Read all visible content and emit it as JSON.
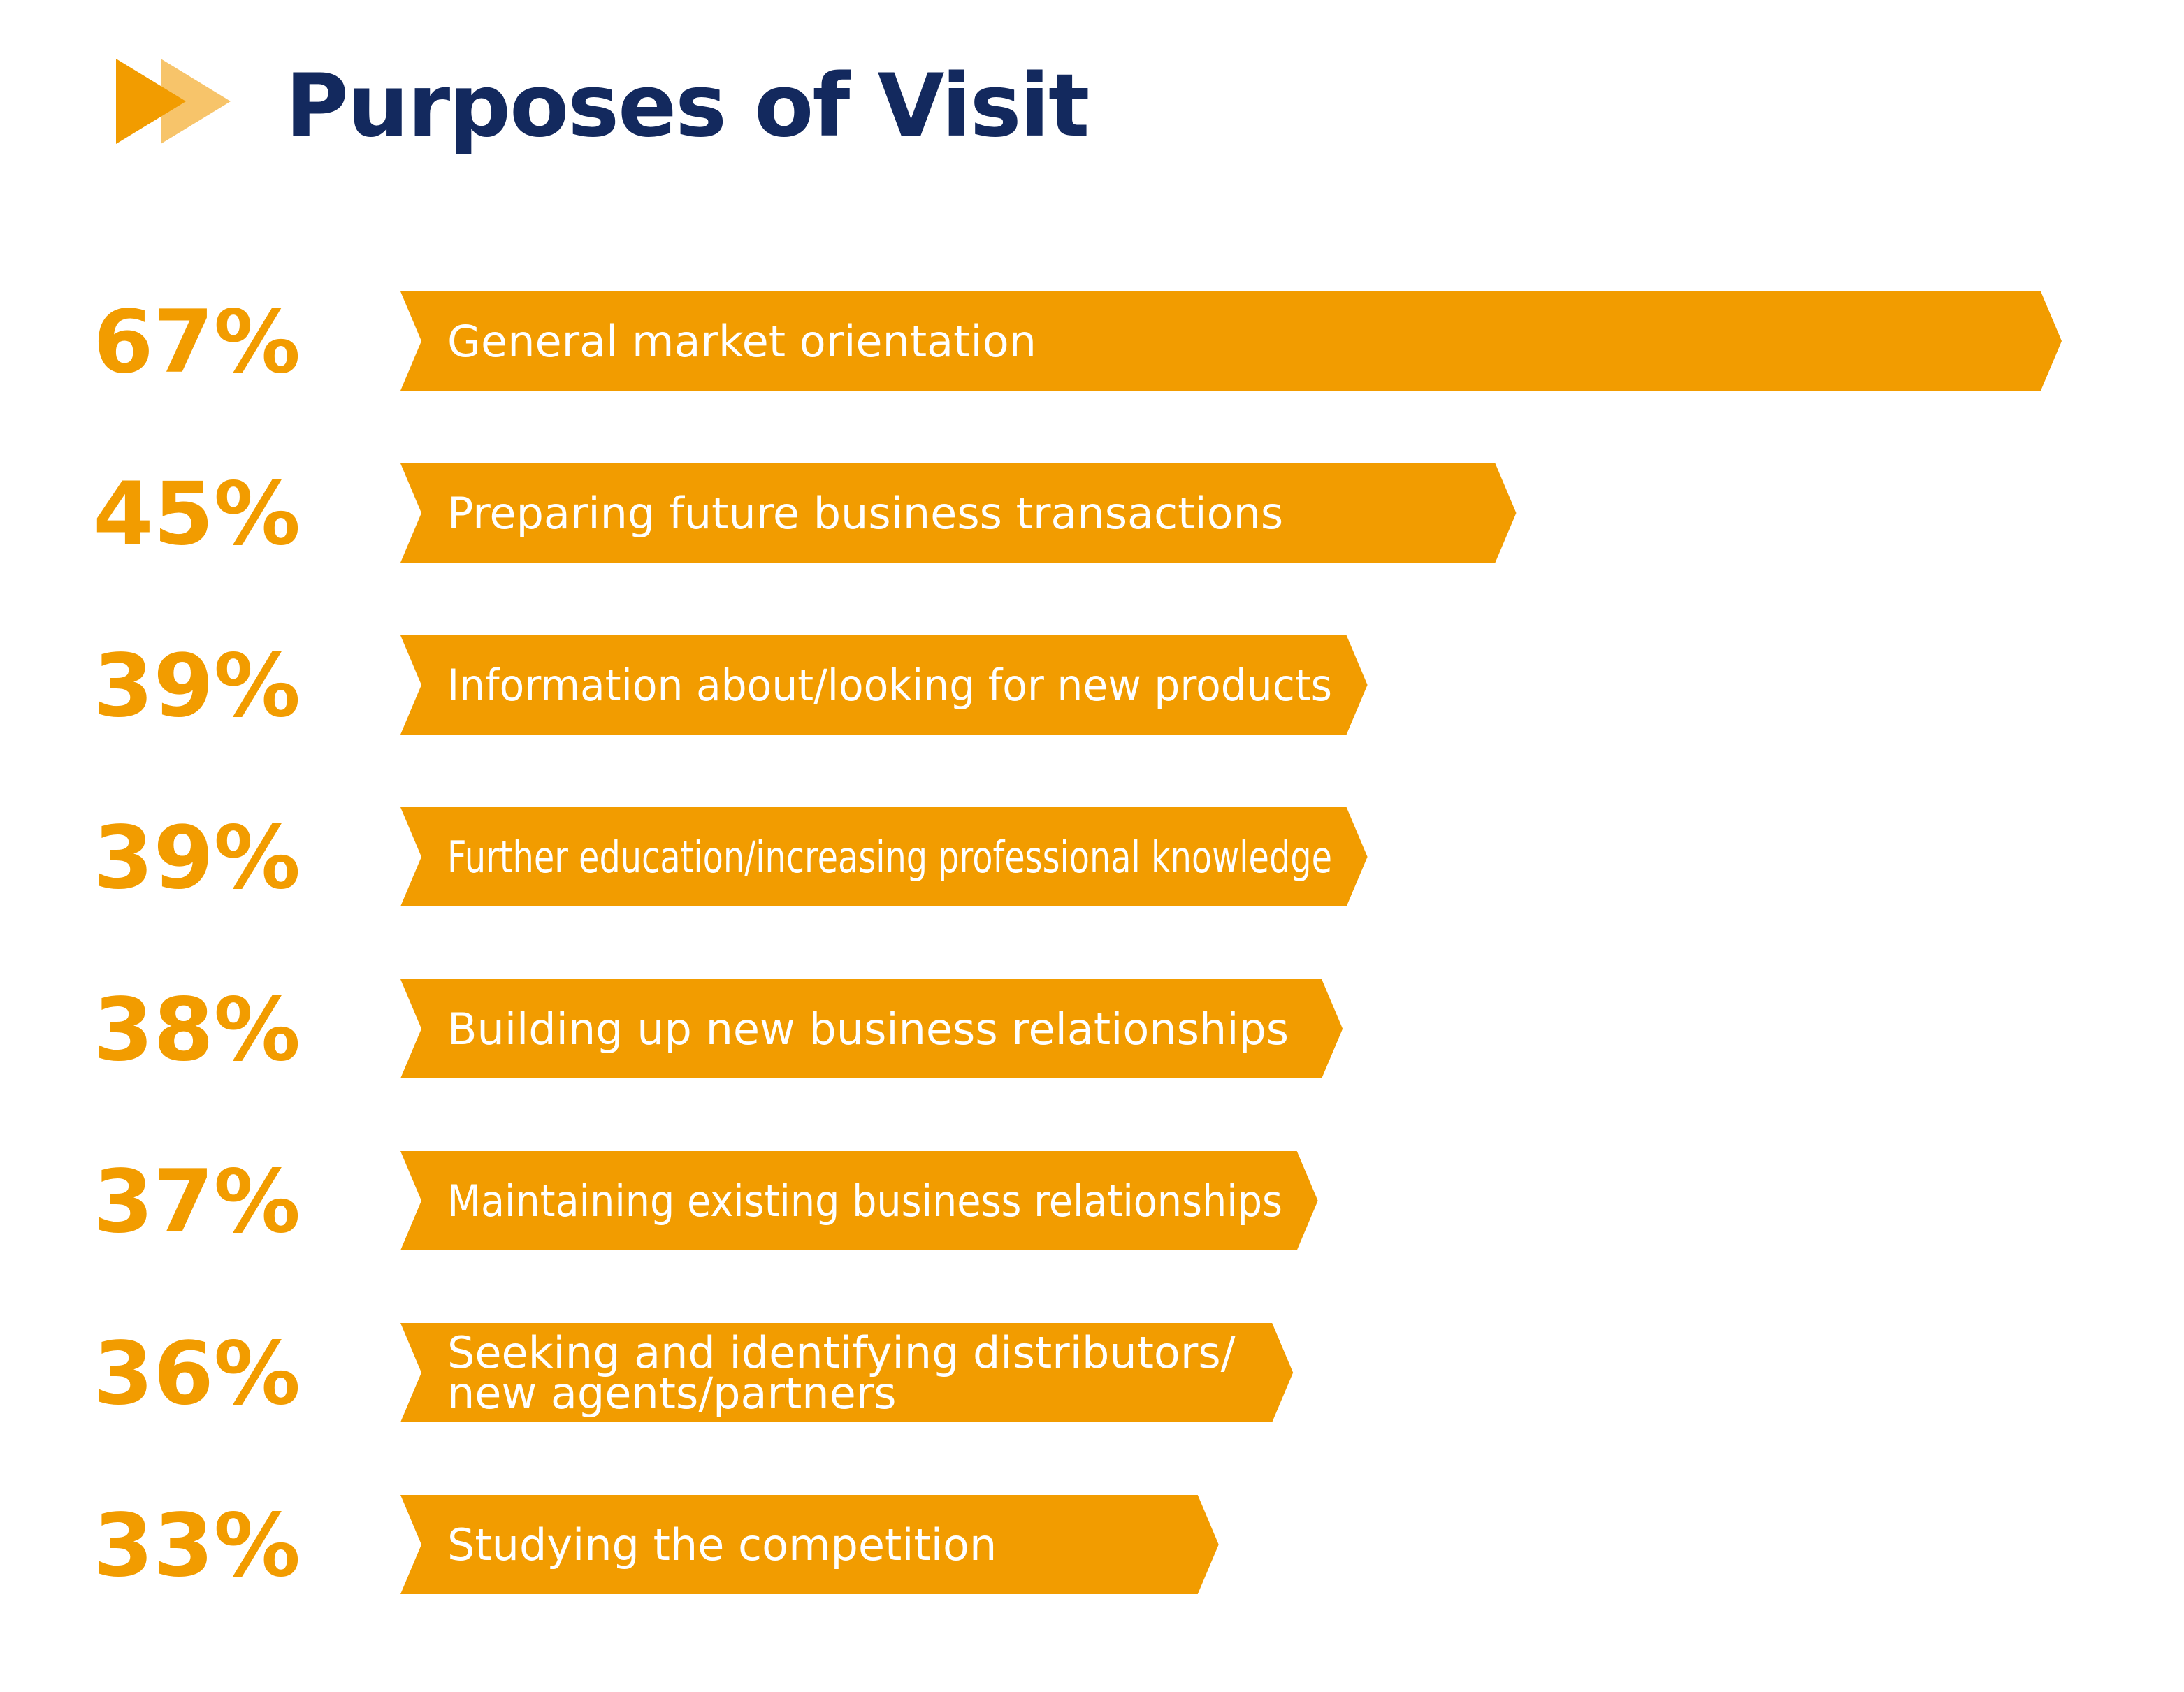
{
  "title": "Purposes of Visit",
  "colors": {
    "title": "#13295e",
    "accent": "#f29c00",
    "accent_light": "#f7c46a",
    "bar_text": "#ffffff"
  },
  "icon": "double-chevron-right-icon",
  "chart_data": {
    "type": "bar",
    "orientation": "horizontal",
    "title": "Purposes of Visit",
    "unit": "%",
    "categories": [
      "General market orientation",
      "Preparing future business transactions",
      "Information about/looking for new products",
      "Further education/increasing professional knowledge",
      "Building up new business relationships",
      "Maintaining existing business relationships",
      "Seeking and identifying distributors/\nnew agents/partners",
      "Studying the competition"
    ],
    "values": [
      67,
      45,
      39,
      39,
      38,
      37,
      36,
      33
    ],
    "value_labels": [
      "67%",
      "45%",
      "39%",
      "39%",
      "38%",
      "37%",
      "36%",
      "33%"
    ],
    "xlim": [
      0,
      67
    ],
    "grid": false,
    "legend": "none"
  }
}
